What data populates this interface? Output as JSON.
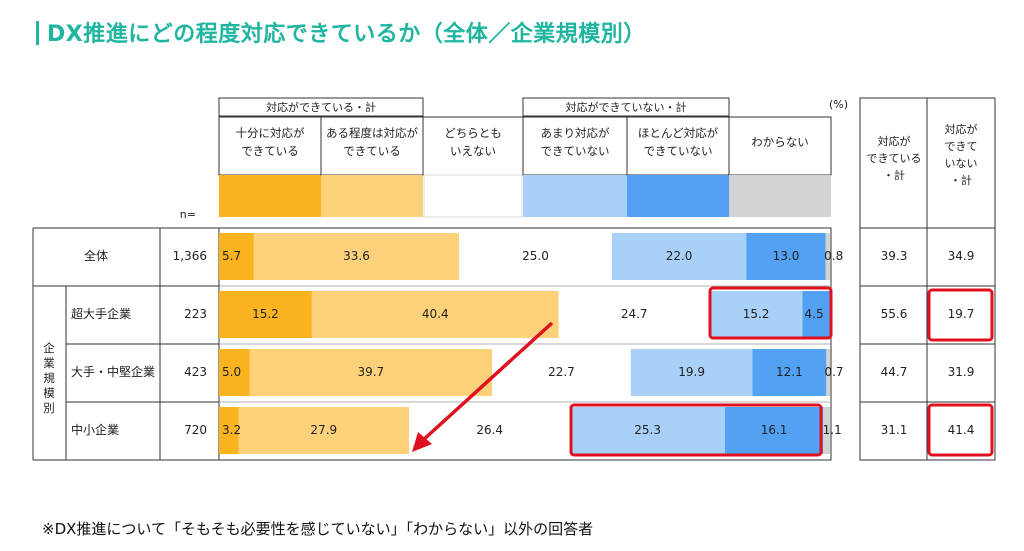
{
  "title": "DX推進にどの程度対応できているか（全体／企業規模別）",
  "footnote": "※DX推進について「そもそも必要性を感じていない」「わからない」以外の回答者",
  "n_label": "n=",
  "unit_label": "(%)",
  "group_headers": [
    "対応ができている・計",
    "対応ができていない・計"
  ],
  "vertical_group_label": "企業規模別",
  "summary_headers": [
    [
      "対応が",
      "できている",
      "・計"
    ],
    [
      "対応が",
      "できて",
      "いない",
      "・計"
    ]
  ],
  "colors": {
    "accent": "#1fb5a0",
    "highlight": "#e0101e",
    "arrow": "#e0101e",
    "categories": [
      "#fbb31f",
      "#fdd17a",
      "#ffffff",
      "#a9d1f8",
      "#52a1f3",
      "#d3d3d3"
    ]
  },
  "chart_data": {
    "type": "bar",
    "stacked": true,
    "orientation": "horizontal",
    "categories": [
      [
        "十分に対応が",
        "できている"
      ],
      [
        "ある程度は対応が",
        "できている"
      ],
      [
        "どちらとも",
        "いえない"
      ],
      [
        "あまり対応が",
        "できていない"
      ],
      [
        "ほとんど対応が",
        "できていない"
      ],
      [
        "わからない"
      ]
    ],
    "rows": [
      {
        "label": "全体",
        "n": "1,366",
        "values": [
          5.7,
          33.6,
          25.0,
          22.0,
          13.0,
          0.8
        ],
        "labels": [
          "5.7",
          "33.6",
          "25.0",
          "22.0",
          "13.0",
          "0.8"
        ],
        "sum_ok": "39.3",
        "sum_ng": "34.9"
      },
      {
        "label": "超大手企業",
        "n": "223",
        "values": [
          15.2,
          40.4,
          24.7,
          15.2,
          4.5,
          0
        ],
        "labels": [
          "15.2",
          "40.4",
          "24.7",
          "15.2",
          "4.5",
          ""
        ],
        "sum_ok": "55.6",
        "sum_ng": "19.7"
      },
      {
        "label": "大手・中堅企業",
        "n": "423",
        "values": [
          5.0,
          39.7,
          22.7,
          19.9,
          12.1,
          0.7
        ],
        "labels": [
          "5.0",
          "39.7",
          "22.7",
          "19.9",
          "12.1",
          "0.7"
        ],
        "sum_ok": "44.7",
        "sum_ng": "31.9"
      },
      {
        "label": "中小企業",
        "n": "720",
        "values": [
          3.2,
          27.9,
          26.4,
          25.3,
          16.1,
          1.1
        ],
        "labels": [
          "3.2",
          "27.9",
          "26.4",
          "25.3",
          "16.1",
          "1.1"
        ],
        "sum_ok": "31.1",
        "sum_ng": "41.4"
      }
    ],
    "xlim": [
      0,
      100
    ]
  }
}
